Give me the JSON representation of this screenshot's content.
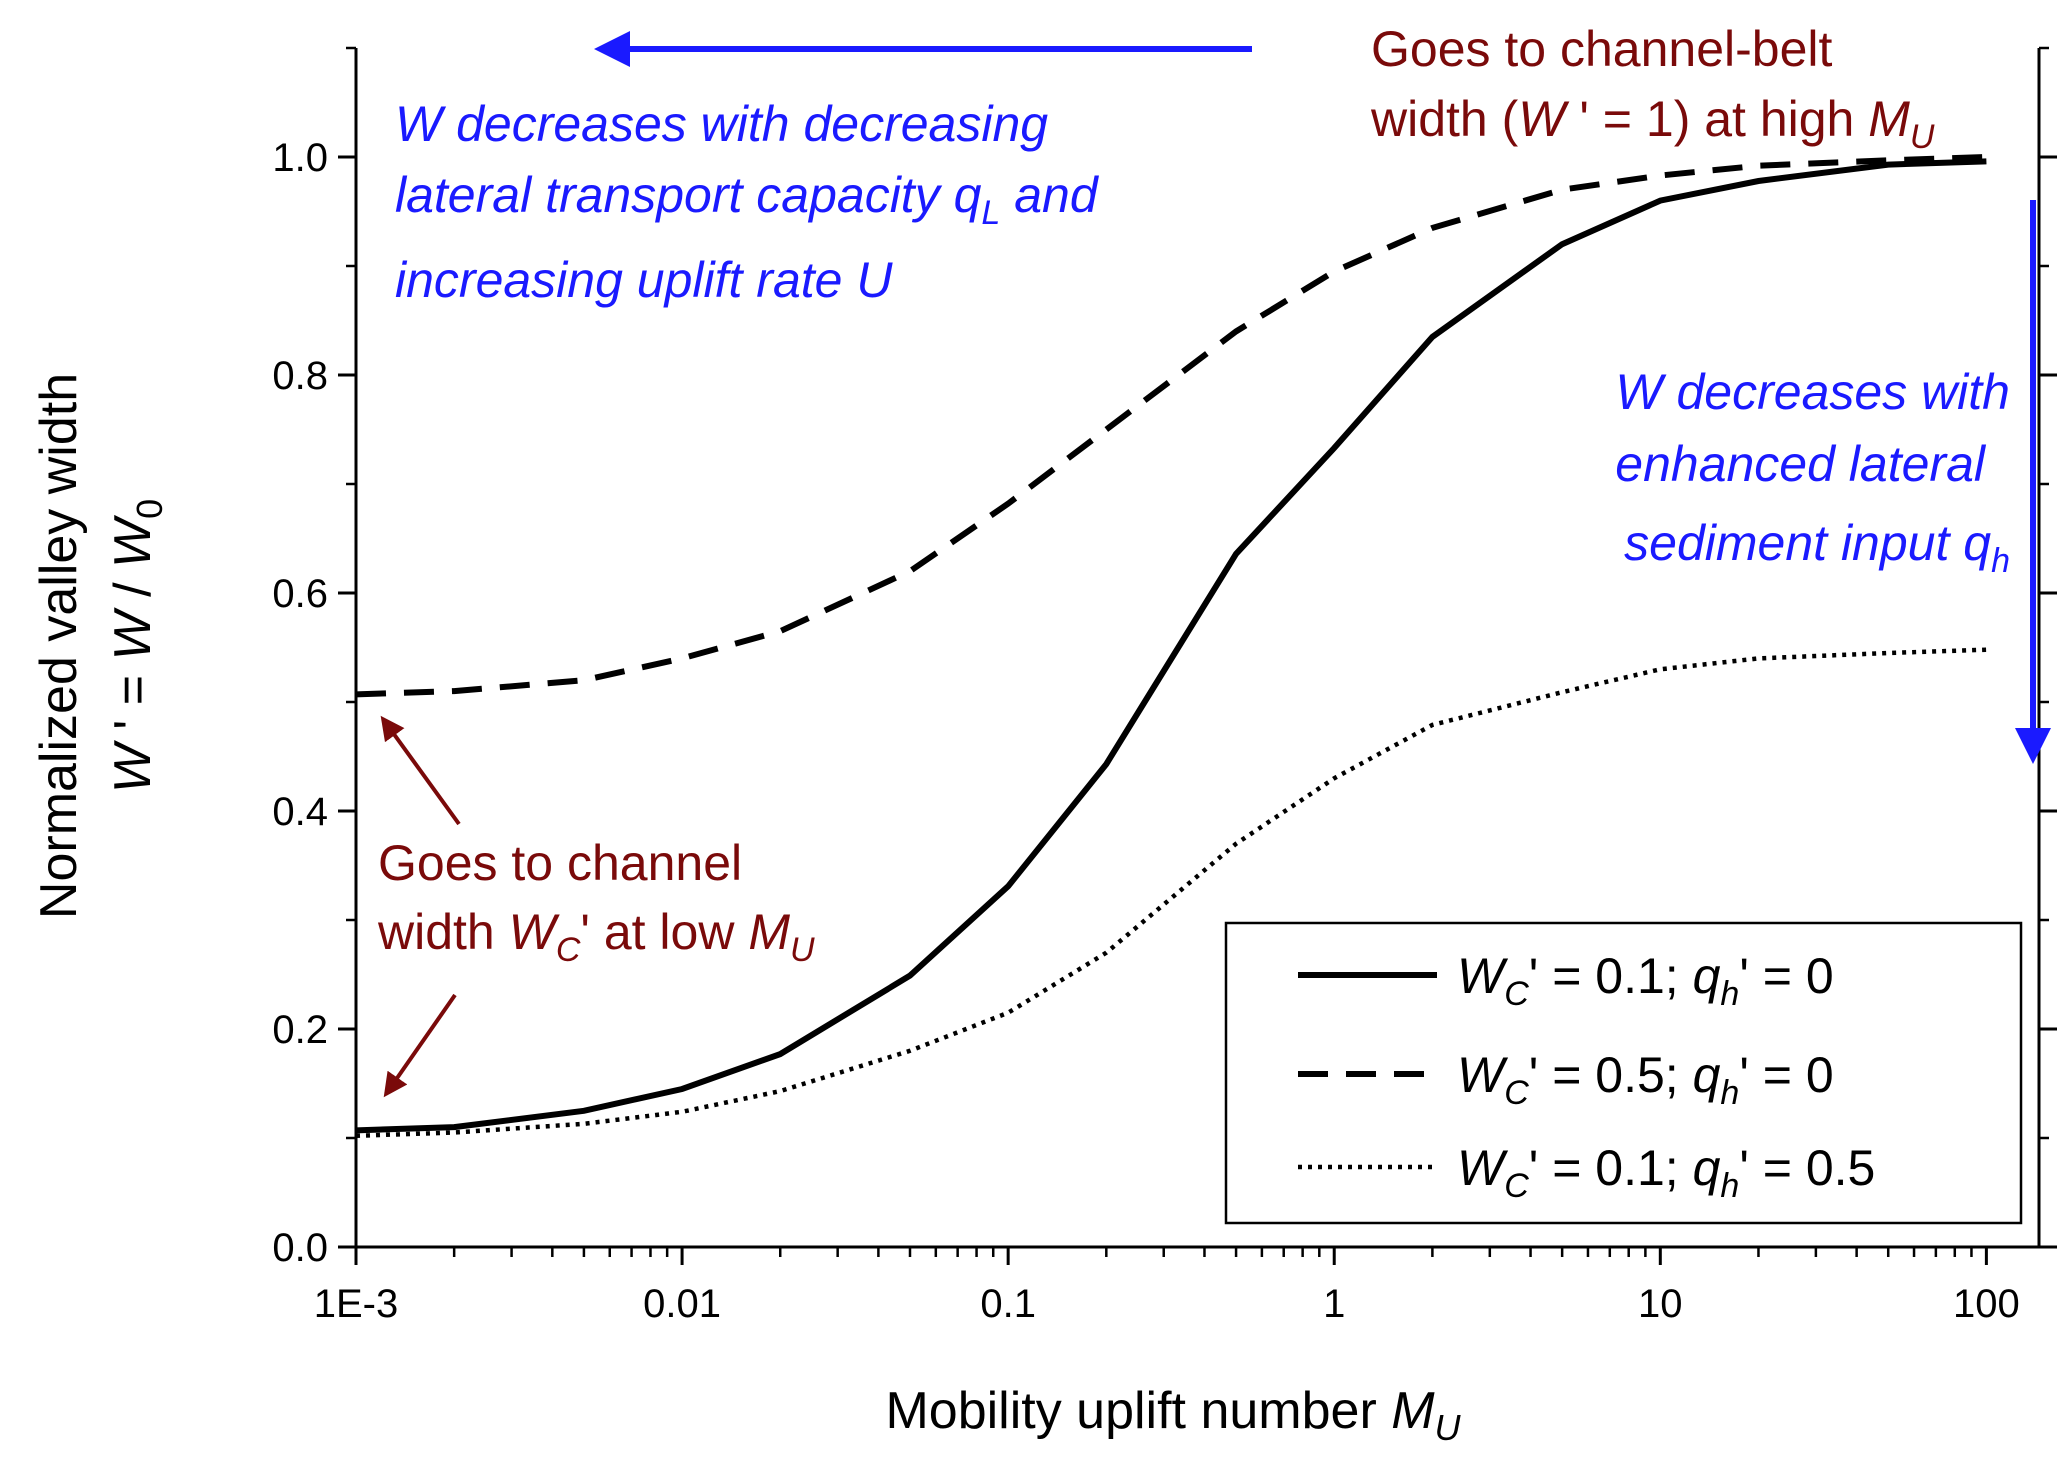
{
  "chart_data": {
    "type": "line",
    "x": [
      0.001,
      0.002,
      0.005,
      0.01,
      0.02,
      0.05,
      0.1,
      0.2,
      0.5,
      1,
      2,
      5,
      10,
      20,
      50,
      100
    ],
    "series": [
      {
        "name": [
          "W",
          "C",
          "' = 0.1; ",
          "q",
          "h",
          "' = 0"
        ],
        "color": "#000000",
        "dash": "solid",
        "values": [
          0.107,
          0.11,
          0.125,
          0.145,
          0.177,
          0.249,
          0.331,
          0.443,
          0.636,
          0.733,
          0.835,
          0.92,
          0.96,
          0.978,
          0.993,
          0.996
        ]
      },
      {
        "name": [
          "W",
          "C",
          "' = 0.5; ",
          "q",
          "h",
          "' = 0"
        ],
        "color": "#000000",
        "dash": "dashed",
        "values": [
          0.507,
          0.51,
          0.52,
          0.54,
          0.565,
          0.62,
          0.682,
          0.75,
          0.84,
          0.895,
          0.935,
          0.97,
          0.983,
          0.992,
          0.997,
          1.0
        ]
      },
      {
        "name": [
          "W",
          "C",
          "' = 0.1; ",
          "q",
          "h",
          "' = 0.5"
        ],
        "color": "#000000",
        "dash": "dotted",
        "values": [
          0.102,
          0.105,
          0.113,
          0.124,
          0.143,
          0.18,
          0.215,
          0.27,
          0.37,
          0.43,
          0.479,
          0.509,
          0.53,
          0.54,
          0.545,
          0.548
        ]
      }
    ],
    "xlog": true,
    "xlim": [
      0.001,
      145
    ],
    "ylim": [
      0,
      1.1
    ],
    "xticks": [
      {
        "value": 0.001,
        "label": "1E-3"
      },
      0.01,
      0.1,
      1,
      10,
      100
    ],
    "xminorticks": [
      0.002,
      0.003,
      0.004,
      0.005,
      0.006,
      0.007,
      0.008,
      0.009,
      0.02,
      0.03,
      0.04,
      0.05,
      0.06,
      0.07,
      0.08,
      0.09,
      0.2,
      0.3,
      0.4,
      0.5,
      0.6,
      0.7,
      0.8,
      0.9,
      2,
      3,
      4,
      5,
      6,
      7,
      8,
      9,
      20,
      30,
      40,
      50,
      60,
      70,
      80,
      90
    ],
    "yticks": [
      {
        "value": 0,
        "label": "0.0"
      },
      0.2,
      0.4,
      0.6,
      0.8,
      {
        "value": 1,
        "label": "1.0"
      }
    ],
    "yminorticks": [
      0.1,
      0.3,
      0.5,
      0.7,
      0.9,
      1.1
    ],
    "xlabel": [
      "Mobility uplift number ",
      "M",
      "U"
    ],
    "ylabel": [
      [
        "Normalized valley width"
      ],
      [
        "W",
        " ' = ",
        "W",
        " / ",
        "W",
        "0"
      ]
    ],
    "legend": "lower right",
    "annotations": {
      "top_left": [
        [
          "W decreases with decreasing"
        ],
        [
          "lateral transport capacity ",
          "q",
          "L",
          " and"
        ],
        [
          "increasing uplift rate U"
        ]
      ],
      "top_right": [
        [
          "Goes to channel-belt"
        ],
        [
          "width (",
          "W",
          " ' = 1) at high ",
          "M",
          "U"
        ]
      ],
      "right": [
        [
          "W decreases with"
        ],
        [
          "enhanced lateral"
        ],
        [
          "sediment input ",
          "q",
          "h"
        ]
      ],
      "bottom_left": [
        [
          "Goes to channel"
        ],
        [
          "width ",
          "W",
          "C",
          "' at low ",
          "M",
          "U"
        ]
      ]
    }
  }
}
